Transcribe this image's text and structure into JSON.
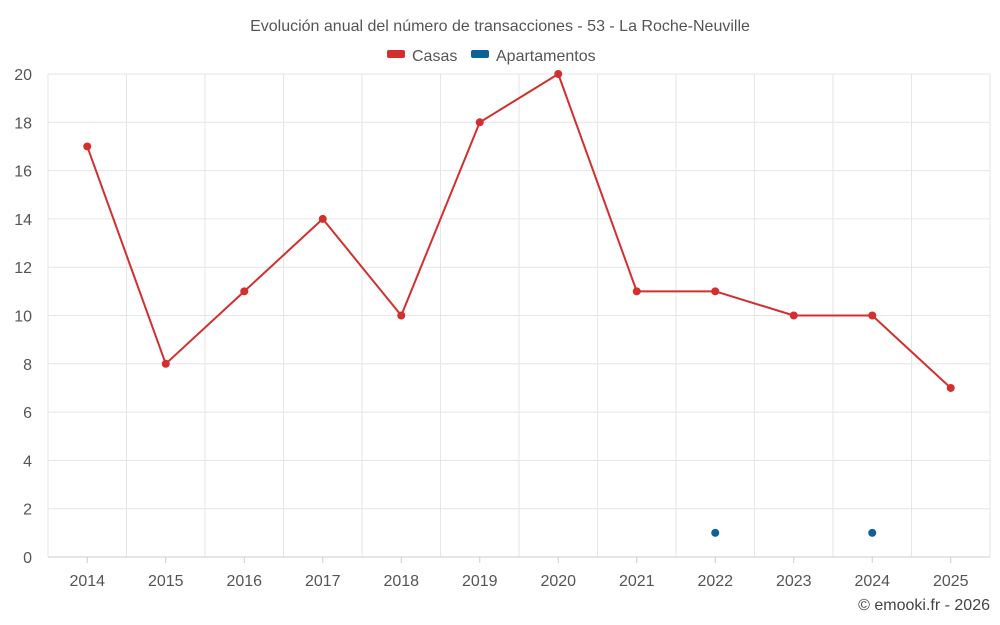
{
  "chart_data": {
    "type": "line",
    "title": "Evolución anual del número de transacciones - 53 - La Roche-Neuville",
    "categories": [
      "2014",
      "2015",
      "2016",
      "2017",
      "2018",
      "2019",
      "2020",
      "2021",
      "2022",
      "2023",
      "2024",
      "2025"
    ],
    "series": [
      {
        "name": "Casas",
        "color": "#d32f2f",
        "values": [
          17,
          8,
          11,
          14,
          10,
          18,
          20,
          11,
          11,
          10,
          10,
          7
        ]
      },
      {
        "name": "Apartamentos",
        "color": "#0d6098",
        "values": [
          null,
          null,
          null,
          null,
          null,
          null,
          null,
          null,
          1,
          null,
          1,
          null
        ]
      }
    ],
    "ylim": [
      0,
      20
    ],
    "yticks": [
      0,
      2,
      4,
      6,
      8,
      10,
      12,
      14,
      16,
      18,
      20
    ],
    "grid": true,
    "legend": "top-center",
    "credit": "© emooki.fr - 2026"
  }
}
